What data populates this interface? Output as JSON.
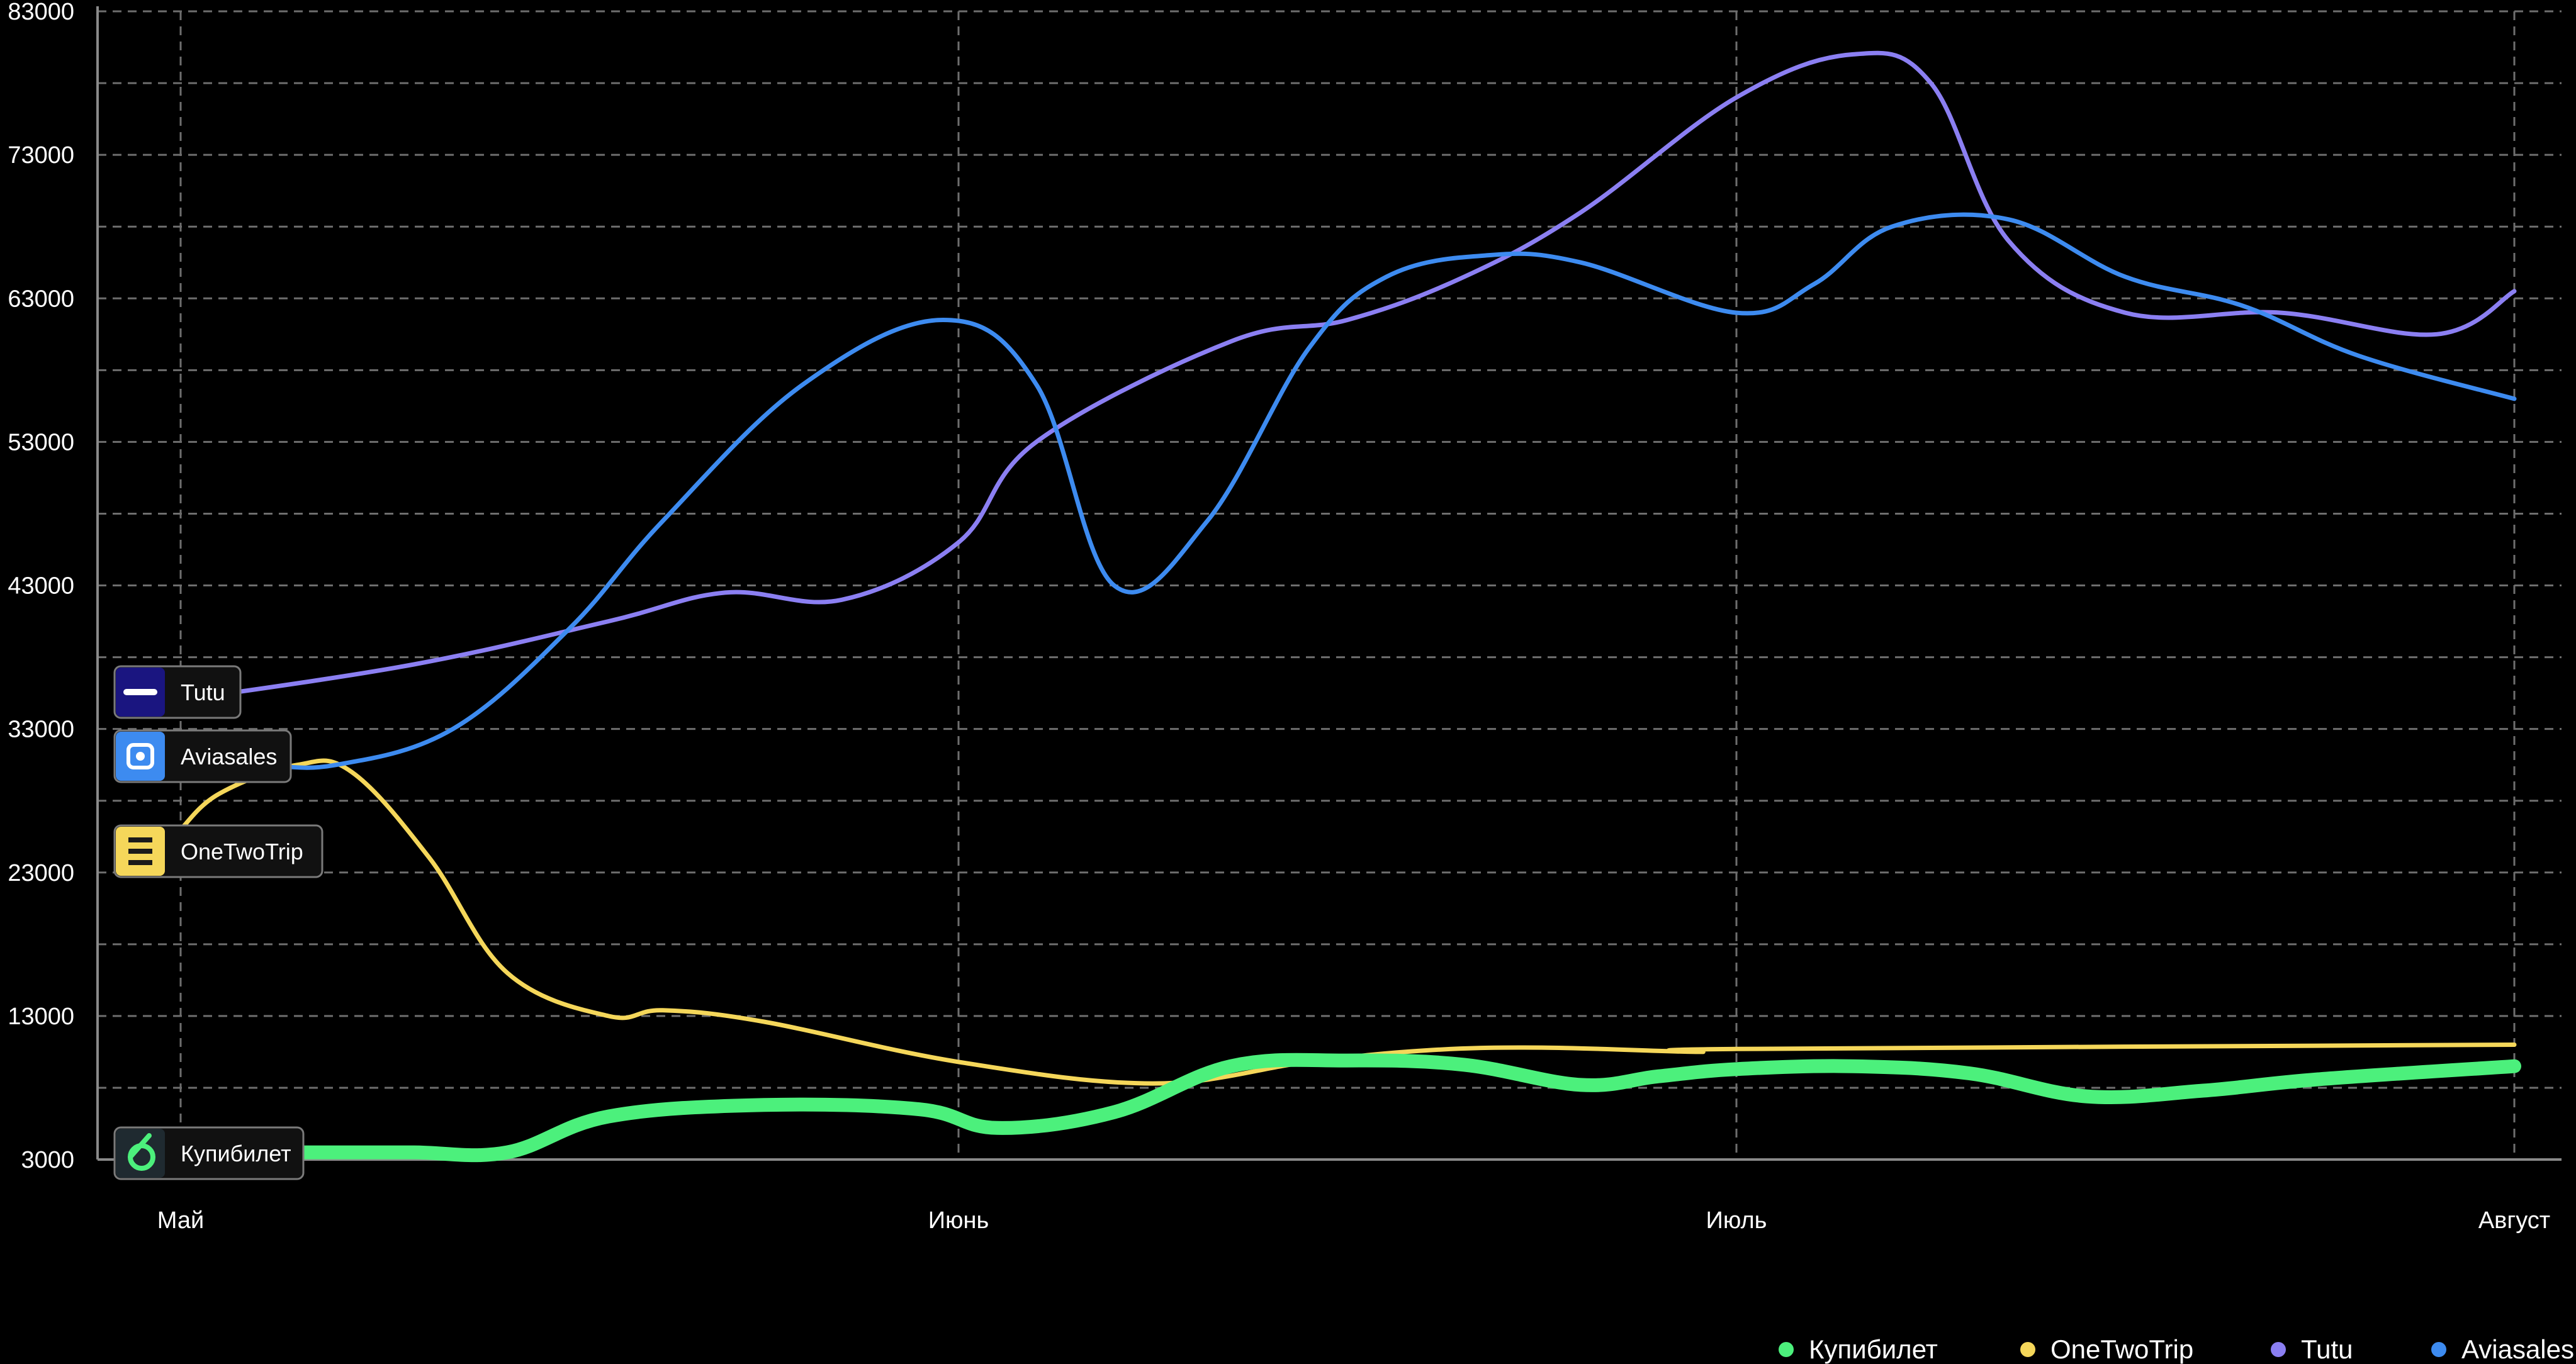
{
  "chart_data": {
    "type": "line",
    "x_labels": [
      "Май",
      "Июнь",
      "Июль",
      "Август"
    ],
    "yticks": [
      3000,
      13000,
      23000,
      33000,
      43000,
      53000,
      63000,
      73000,
      83000
    ],
    "ylim": [
      3000,
      83000
    ],
    "xlim": [
      0,
      3
    ],
    "grid": true,
    "legend_position": "bottom-right",
    "series": [
      {
        "name": "Купибилет",
        "color": "#4cf07c",
        "icon": "kupibilet-logo",
        "x": [
          0,
          0.2,
          0.3,
          0.42,
          0.55,
          0.75,
          0.95,
          1.05,
          1.2,
          1.35,
          1.5,
          1.65,
          1.8,
          1.9,
          2.0,
          2.15,
          2.3,
          2.45,
          2.6,
          2.75,
          3.0
        ],
        "values": [
          3500,
          3500,
          3500,
          3500,
          6000,
          6800,
          6500,
          5200,
          6300,
          9500,
          9900,
          9600,
          8200,
          8800,
          9300,
          9500,
          9000,
          7400,
          7800,
          8600,
          9500
        ]
      },
      {
        "name": "OneTwoTrip",
        "color": "#f5d75a",
        "icon": "onetwotrip-logo",
        "x": [
          0,
          0.05,
          0.15,
          0.22,
          0.32,
          0.42,
          0.55,
          0.62,
          0.75,
          1.0,
          1.25,
          1.45,
          1.6,
          1.75,
          1.95,
          2.0,
          3.0
        ],
        "values": [
          26000,
          28500,
          30500,
          30000,
          24000,
          16000,
          13000,
          13400,
          12600,
          9800,
          8300,
          9800,
          10600,
          10800,
          10500,
          10700,
          11000
        ]
      },
      {
        "name": "Tutu",
        "color": "#8b7ff2",
        "icon": "tutu-logo",
        "x": [
          0,
          0.3,
          0.55,
          0.7,
          0.85,
          1.0,
          1.1,
          1.35,
          1.5,
          1.65,
          1.8,
          2.0,
          2.15,
          2.25,
          2.35,
          2.5,
          2.7,
          2.9,
          3.0
        ],
        "values": [
          35000,
          37500,
          40500,
          42500,
          42000,
          46000,
          53000,
          60000,
          61500,
          64500,
          69000,
          77000,
          80000,
          78000,
          67000,
          62000,
          62000,
          60500,
          63500
        ]
      },
      {
        "name": "Aviasales",
        "color": "#3d8bf0",
        "icon": "aviasales-logo",
        "x": [
          0,
          0.1,
          0.2,
          0.35,
          0.5,
          0.62,
          0.8,
          0.98,
          1.1,
          1.2,
          1.32,
          1.45,
          1.55,
          1.68,
          1.8,
          2.0,
          2.1,
          2.2,
          2.35,
          2.5,
          2.65,
          2.8,
          3.0
        ],
        "values": [
          30500,
          30500,
          30500,
          33000,
          40000,
          47500,
          57000,
          61500,
          57000,
          43000,
          47500,
          59500,
          64500,
          66000,
          65500,
          62000,
          64000,
          68000,
          68500,
          64500,
          62500,
          59000,
          56000
        ]
      }
    ]
  }
}
